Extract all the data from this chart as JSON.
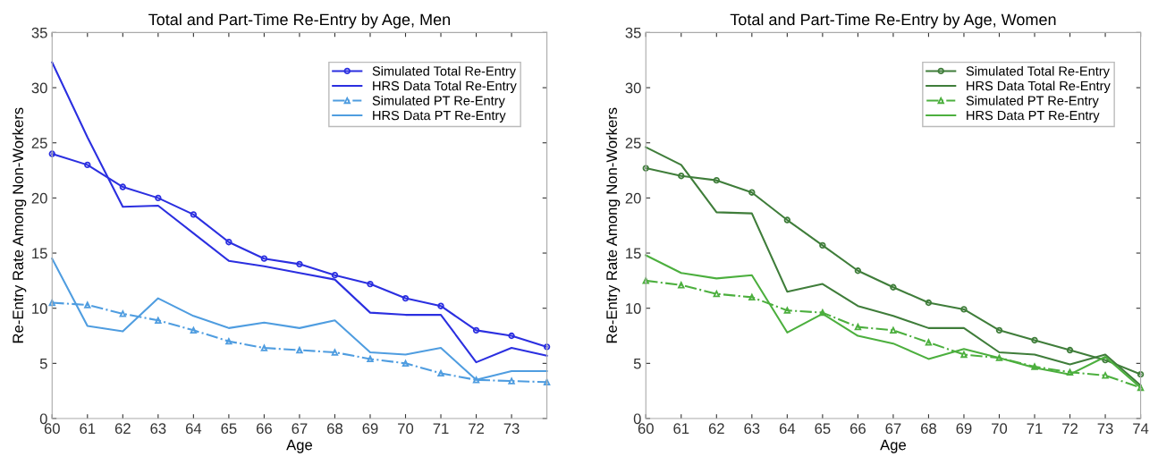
{
  "chart_data": [
    {
      "type": "line",
      "title": "Total and Part-Time Re-Entry by Age, Men",
      "xlabel": "Age",
      "ylabel": "Re-Entry Rate Among Non-Workers",
      "x": [
        60,
        61,
        62,
        63,
        64,
        65,
        66,
        67,
        68,
        69,
        70,
        71,
        72,
        73,
        74
      ],
      "xlim": [
        60,
        74
      ],
      "xticks": [
        60,
        61,
        62,
        63,
        64,
        65,
        66,
        67,
        68,
        69,
        70,
        71,
        72,
        73
      ],
      "ylim": [
        0,
        35
      ],
      "yticks": [
        0,
        5,
        10,
        15,
        20,
        25,
        30,
        35
      ],
      "grid": false,
      "legend": "top right",
      "series": [
        {
          "name": "Simulated Total Re-Entry",
          "color": "#2b2fe0",
          "marker": "circle",
          "line_style": "solid",
          "values": [
            24,
            23,
            21,
            20,
            18.5,
            16,
            14.5,
            14,
            13,
            12.2,
            10.9,
            10.2,
            8,
            7.5,
            6.5
          ]
        },
        {
          "name": "HRS Data Total Re-Entry",
          "color": "#2b2fe0",
          "marker": "none",
          "line_style": "solid",
          "values": [
            32.3,
            25.5,
            19.2,
            19.3,
            16.8,
            14.3,
            13.8,
            13.2,
            12.6,
            9.6,
            9.4,
            9.4,
            5.1,
            6.4,
            5.7
          ]
        },
        {
          "name": "Simulated PT Re-Entry",
          "color": "#4f9de0",
          "marker": "triangle",
          "line_style": "dashdot",
          "values": [
            10.5,
            10.3,
            9.5,
            8.9,
            8.0,
            7.0,
            6.4,
            6.2,
            6.0,
            5.4,
            5.0,
            4.1,
            3.5,
            3.4,
            3.3
          ]
        },
        {
          "name": "HRS Data PT Re-Entry",
          "color": "#4f9de0",
          "marker": "none",
          "line_style": "solid",
          "values": [
            14.5,
            8.4,
            7.9,
            10.9,
            9.3,
            8.2,
            8.7,
            8.2,
            8.9,
            6.0,
            5.8,
            6.4,
            3.5,
            4.3,
            4.3
          ]
        }
      ]
    },
    {
      "type": "line",
      "title": "Total and Part-Time Re-Entry by Age, Women",
      "xlabel": "Age",
      "ylabel": "Re-Entry Rate Among Non-Workers",
      "x": [
        60,
        61,
        62,
        63,
        64,
        65,
        66,
        67,
        68,
        69,
        70,
        71,
        72,
        73,
        74
      ],
      "xlim": [
        60,
        74
      ],
      "xticks": [
        60,
        61,
        62,
        63,
        64,
        65,
        66,
        67,
        68,
        69,
        70,
        71,
        72,
        73,
        74
      ],
      "ylim": [
        0,
        35
      ],
      "yticks": [
        0,
        5,
        10,
        15,
        20,
        25,
        30,
        35
      ],
      "grid": false,
      "legend": "top right",
      "series": [
        {
          "name": "Simulated Total Re-Entry",
          "color": "#3f7d3a",
          "marker": "circle",
          "line_style": "solid",
          "values": [
            22.7,
            22.0,
            21.6,
            20.5,
            18.0,
            15.7,
            13.4,
            11.9,
            10.5,
            9.9,
            8.0,
            7.1,
            6.2,
            5.3,
            4.0
          ]
        },
        {
          "name": "HRS Data Total Re-Entry",
          "color": "#3f7d3a",
          "marker": "none",
          "line_style": "solid",
          "values": [
            24.6,
            23.0,
            18.7,
            18.6,
            11.5,
            12.2,
            10.2,
            9.3,
            8.2,
            8.2,
            6.0,
            5.8,
            4.9,
            5.8,
            3.0
          ]
        },
        {
          "name": "Simulated PT Re-Entry",
          "color": "#4caf3e",
          "marker": "triangle",
          "line_style": "dashdot",
          "values": [
            12.5,
            12.1,
            11.3,
            11.0,
            9.8,
            9.6,
            8.3,
            8.0,
            6.9,
            5.8,
            5.5,
            4.7,
            4.2,
            3.9,
            2.8
          ]
        },
        {
          "name": "HRS Data PT Re-Entry",
          "color": "#4caf3e",
          "marker": "none",
          "line_style": "solid",
          "values": [
            14.8,
            13.2,
            12.7,
            13.0,
            7.8,
            9.5,
            7.5,
            6.8,
            5.4,
            6.3,
            5.5,
            4.6,
            4.0,
            5.6,
            2.8
          ]
        }
      ]
    }
  ]
}
